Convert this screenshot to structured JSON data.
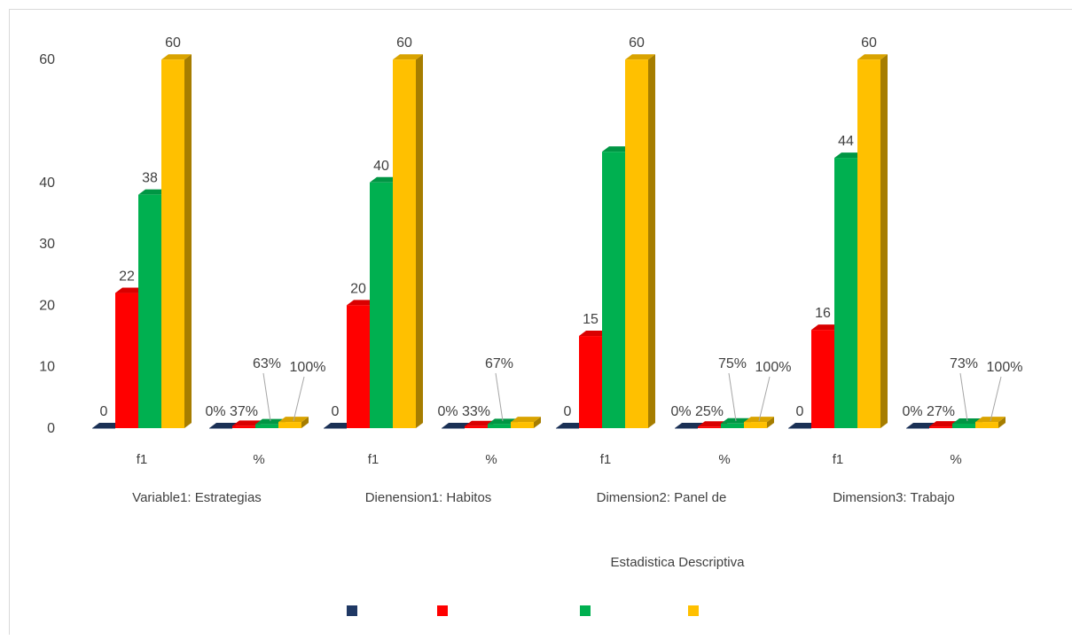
{
  "chart_data": {
    "type": "bar",
    "style": "3d-clustered-column",
    "xlabel": "Estadistica Descriptiva",
    "y_tick_labels": [
      "0",
      "10",
      "20",
      "30",
      "40",
      "60"
    ],
    "ylim": [
      0,
      60
    ],
    "grid": false,
    "legend_position": "bottom",
    "groups": [
      "Variable1: Estrategias",
      "Dienension1: Habitos",
      "Dimension2: Panel de",
      "Dimension3: Trabajo"
    ],
    "categories": [
      "f1",
      "%",
      "f1",
      "%",
      "f1",
      "%",
      "f1",
      "%"
    ],
    "series": [
      {
        "color": "#1f3864",
        "values": [
          0,
          0,
          0,
          0,
          0,
          0,
          0,
          0
        ],
        "labels": [
          "0",
          "0%",
          "0",
          "0%",
          "0",
          "0%",
          "0",
          "0%"
        ]
      },
      {
        "color": "#ff0000",
        "values": [
          22,
          0.37,
          20,
          0.33,
          15,
          0.25,
          16,
          0.27
        ],
        "labels": [
          "22",
          "37%",
          "20",
          "33%",
          "15",
          "25%",
          "16",
          "27%"
        ]
      },
      {
        "color": "#00b050",
        "values": [
          38,
          0.63,
          40,
          0.67,
          45,
          0.75,
          44,
          0.73
        ],
        "labels": [
          "38",
          "63%",
          "40",
          "67%",
          "",
          "75%",
          "44",
          "73%"
        ]
      },
      {
        "color": "#ffc000",
        "values": [
          60,
          1,
          60,
          1,
          60,
          1,
          60,
          1
        ],
        "labels": [
          "60",
          "100%",
          "60",
          "",
          "60",
          "100%",
          "60",
          "100%"
        ]
      }
    ]
  }
}
